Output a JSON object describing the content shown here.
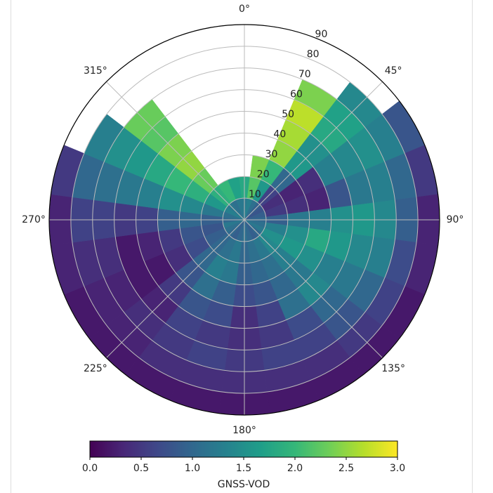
{
  "chart_data": {
    "type": "polar_heatmap",
    "theta": [
      0,
      15,
      30,
      45,
      60,
      75,
      90,
      105,
      120,
      135,
      150,
      165,
      180,
      195,
      210,
      225,
      240,
      255,
      270,
      285,
      300,
      315,
      330,
      345
    ],
    "r_bins": [
      0,
      10,
      20,
      30,
      40,
      50,
      60,
      70,
      80,
      90
    ],
    "values": [
      [
        1.2,
        1.3,
        1.1,
        0.9,
        0.8,
        0.9,
        1.0,
        1.1,
        1.2,
        1.0,
        0.9,
        1.0,
        1.1,
        1.0,
        0.9,
        1.0,
        1.1,
        1.2,
        1.0,
        1.1,
        1.3,
        1.2,
        1.1,
        1.2
      ],
      [
        1.8,
        2.2,
        1.6,
        0.6,
        0.4,
        0.5,
        0.9,
        1.3,
        1.5,
        1.4,
        1.2,
        1.1,
        1.0,
        1.2,
        1.1,
        1.0,
        0.9,
        0.8,
        0.9,
        1.2,
        1.6,
        1.9,
        2.0,
        1.7
      ],
      [
        null,
        2.4,
        2.0,
        1.0,
        0.3,
        0.4,
        1.2,
        1.5,
        1.6,
        1.3,
        1.1,
        1.0,
        0.9,
        1.2,
        1.3,
        1.0,
        0.7,
        0.8,
        1.0,
        1.4,
        1.9,
        2.3,
        null,
        null
      ],
      [
        null,
        null,
        2.5,
        1.6,
        0.4,
        0.3,
        1.3,
        1.8,
        1.5,
        1.2,
        1.0,
        0.8,
        0.7,
        0.9,
        1.1,
        0.8,
        0.4,
        0.5,
        0.9,
        1.5,
        2.0,
        2.5,
        null,
        null
      ],
      [
        null,
        null,
        2.6,
        1.5,
        1.3,
        0.8,
        1.5,
        1.6,
        1.3,
        1.4,
        1.1,
        0.6,
        0.4,
        0.7,
        0.8,
        0.5,
        0.2,
        0.3,
        0.6,
        1.3,
        1.8,
        2.4,
        null,
        null
      ],
      [
        null,
        null,
        2.7,
        1.8,
        1.4,
        1.2,
        1.6,
        1.4,
        1.2,
        1.0,
        0.7,
        0.5,
        0.4,
        0.5,
        0.6,
        0.3,
        0.2,
        0.2,
        0.5,
        1.2,
        1.6,
        2.2,
        null,
        null
      ],
      [
        null,
        null,
        2.4,
        1.7,
        1.5,
        1.3,
        1.4,
        1.3,
        1.0,
        0.8,
        0.6,
        0.6,
        0.5,
        0.6,
        0.5,
        0.4,
        0.3,
        0.4,
        0.6,
        1.1,
        1.5,
        2.3,
        null,
        null
      ],
      [
        null,
        null,
        null,
        1.4,
        1.3,
        1.0,
        0.9,
        0.7,
        0.6,
        0.5,
        0.4,
        0.4,
        0.4,
        0.4,
        0.4,
        0.3,
        0.3,
        0.4,
        0.6,
        1.0,
        1.3,
        null,
        null,
        null
      ],
      [
        null,
        null,
        null,
        null,
        0.8,
        0.5,
        0.3,
        0.3,
        0.2,
        0.2,
        0.2,
        0.2,
        0.2,
        0.2,
        0.2,
        0.2,
        0.2,
        0.3,
        0.3,
        0.5,
        null,
        null,
        null,
        null
      ]
    ],
    "rlim": [
      0,
      90
    ],
    "rticks": [
      10,
      20,
      30,
      40,
      50,
      60,
      70,
      80,
      90
    ],
    "thetaticks": [
      {
        "value": 0,
        "label": "0°"
      },
      {
        "value": 45,
        "label": "45°"
      },
      {
        "value": 90,
        "label": "90°"
      },
      {
        "value": 135,
        "label": "135°"
      },
      {
        "value": 180,
        "label": "180°"
      },
      {
        "value": 225,
        "label": "225°"
      },
      {
        "value": 270,
        "label": "270°"
      },
      {
        "value": 315,
        "label": "315°"
      }
    ],
    "grid": true,
    "colormap": [
      "#440154",
      "#482878",
      "#3e4989",
      "#31688e",
      "#26828e",
      "#1f9e89",
      "#35b779",
      "#6ece58",
      "#b5de2b",
      "#fde725"
    ],
    "colorbar": {
      "label": "GNSS-VOD",
      "lim": [
        0,
        3
      ],
      "ticks": [
        {
          "value": 0,
          "label": "0.0"
        },
        {
          "value": 0.5,
          "label": "0.5"
        },
        {
          "value": 1,
          "label": "1.0"
        },
        {
          "value": 1.5,
          "label": "1.5"
        },
        {
          "value": 2,
          "label": "2.0"
        },
        {
          "value": 2.5,
          "label": "2.5"
        },
        {
          "value": 3,
          "label": "3.0"
        }
      ]
    }
  }
}
